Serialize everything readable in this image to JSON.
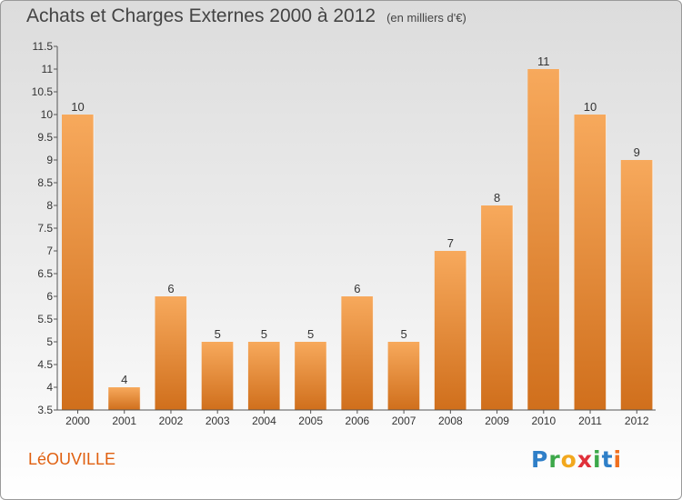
{
  "title": "Achats et Charges Externes 2000 à 2012",
  "subtitle": "(en milliers d'€)",
  "commune": "LéOUVILLE",
  "brand": {
    "letters": [
      "P",
      "r",
      "o",
      "x",
      "i",
      "t",
      "i"
    ],
    "colors": [
      "#2f7fc8",
      "#3da84a",
      "#f2a81e",
      "#e0303a",
      "#3da84a",
      "#2f7fc8",
      "#f07020"
    ]
  },
  "colors": {
    "bar_light": "#f7a95c",
    "bar_dark": "#d06f1c",
    "label_commune": "#e06010"
  },
  "chart_data": {
    "type": "bar",
    "categories": [
      "2000",
      "2001",
      "2002",
      "2003",
      "2004",
      "2005",
      "2006",
      "2007",
      "2008",
      "2009",
      "2010",
      "2011",
      "2012"
    ],
    "values": [
      10,
      4,
      6,
      5,
      5,
      5,
      6,
      5,
      7,
      8,
      11,
      10,
      9
    ],
    "ylim": [
      3.5,
      11.5
    ],
    "yticks": [
      3.5,
      4,
      4.5,
      5,
      5.5,
      6,
      6.5,
      7,
      7.5,
      8,
      8.5,
      9,
      9.5,
      10,
      10.5,
      11,
      11.5
    ],
    "ytick_labels": [
      "3.5",
      "4",
      "4.5",
      "5",
      "5.5",
      "6",
      "6.5",
      "7",
      "7.5",
      "8",
      "8.5",
      "9",
      "9.5",
      "10",
      "10.5",
      "11",
      "11.5"
    ],
    "grid": false,
    "legend": "none"
  }
}
